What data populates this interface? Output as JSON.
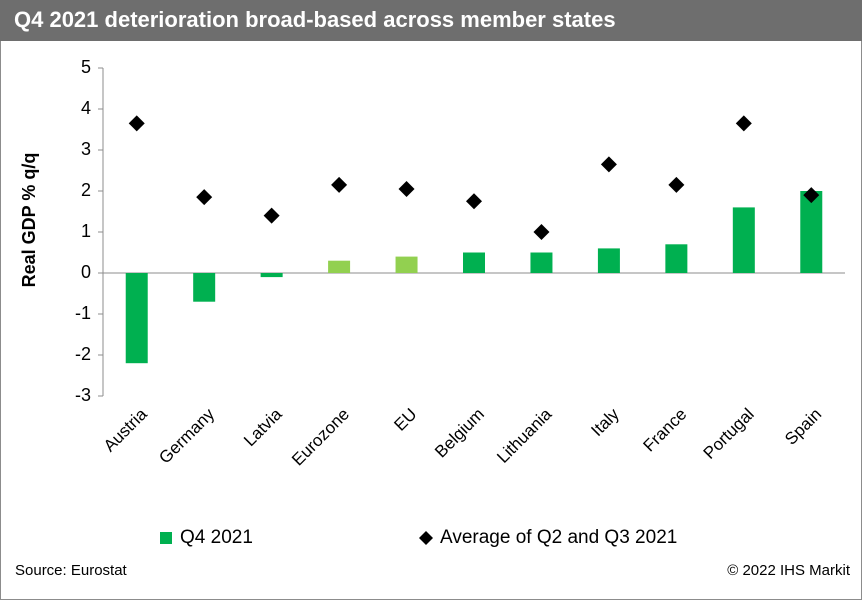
{
  "chart_data": {
    "type": "bar",
    "title": "Q4 2021 deterioration broad-based across member states",
    "y_label": "Real GDP % q/q",
    "source": "Source: Eurostat",
    "copyright": "© 2022 IHS Markit",
    "categories": [
      "Austria",
      "Germany",
      "Latvia",
      "Eurozone",
      "EU",
      "Belgium",
      "Lithuania",
      "Italy",
      "France",
      "Portugal",
      "Spain"
    ],
    "series": [
      {
        "name": "Q4 2021",
        "type": "bar",
        "color": "#00b050",
        "colors": [
          "#00b050",
          "#00b050",
          "#00b050",
          "#92d050",
          "#92d050",
          "#00b050",
          "#00b050",
          "#00b050",
          "#00b050",
          "#00b050",
          "#00b050"
        ],
        "values": [
          -2.2,
          -0.7,
          -0.1,
          0.3,
          0.4,
          0.5,
          0.5,
          0.6,
          0.7,
          1.6,
          2.0
        ]
      },
      {
        "name": "Average of Q2 and Q3 2021",
        "type": "scatter",
        "marker": "diamond",
        "color": "#000000",
        "values": [
          3.65,
          1.85,
          1.4,
          2.15,
          2.05,
          1.75,
          1.0,
          2.65,
          2.15,
          3.65,
          1.9
        ]
      }
    ],
    "ylim": [
      -3,
      5
    ],
    "yticks": [
      -3,
      -2,
      -1,
      0,
      1,
      2,
      3,
      4,
      5
    ],
    "grid": false
  }
}
